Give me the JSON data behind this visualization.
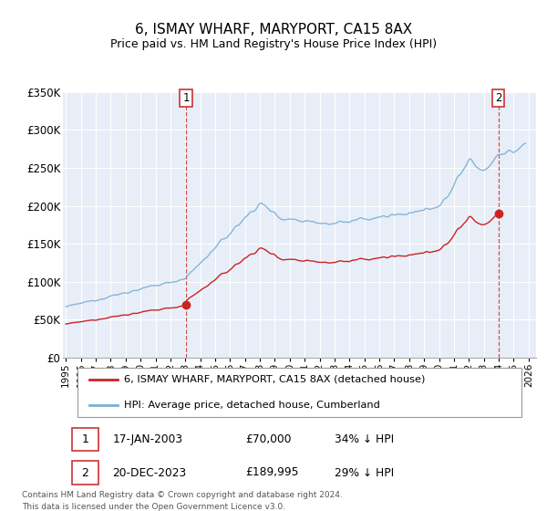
{
  "title": "6, ISMAY WHARF, MARYPORT, CA15 8AX",
  "subtitle": "Price paid vs. HM Land Registry's House Price Index (HPI)",
  "ylim": [
    0,
    350000
  ],
  "yticks": [
    0,
    50000,
    100000,
    150000,
    200000,
    250000,
    300000,
    350000
  ],
  "ytick_labels": [
    "£0",
    "£50K",
    "£100K",
    "£150K",
    "£200K",
    "£250K",
    "£300K",
    "£350K"
  ],
  "xlim_start": 1994.8,
  "xlim_end": 2026.5,
  "background_color": "#ffffff",
  "plot_bg_color": "#e8eef8",
  "grid_color": "#ffffff",
  "hpi_color": "#7bafd4",
  "price_color": "#cc2222",
  "marker_color": "#cc2222",
  "vline_color": "#cc3333",
  "legend_label_price": "6, ISMAY WHARF, MARYPORT, CA15 8AX (detached house)",
  "legend_label_hpi": "HPI: Average price, detached house, Cumberland",
  "annotation1_date": "17-JAN-2003",
  "annotation1_price": "£70,000",
  "annotation1_pct": "34% ↓ HPI",
  "annotation1_year": 2003.05,
  "annotation1_value": 70000,
  "annotation2_date": "20-DEC-2023",
  "annotation2_price": "£189,995",
  "annotation2_pct": "29% ↓ HPI",
  "annotation2_year": 2023.97,
  "annotation2_value": 189995,
  "footer_line1": "Contains HM Land Registry data © Crown copyright and database right 2024.",
  "footer_line2": "This data is licensed under the Open Government Licence v3.0."
}
